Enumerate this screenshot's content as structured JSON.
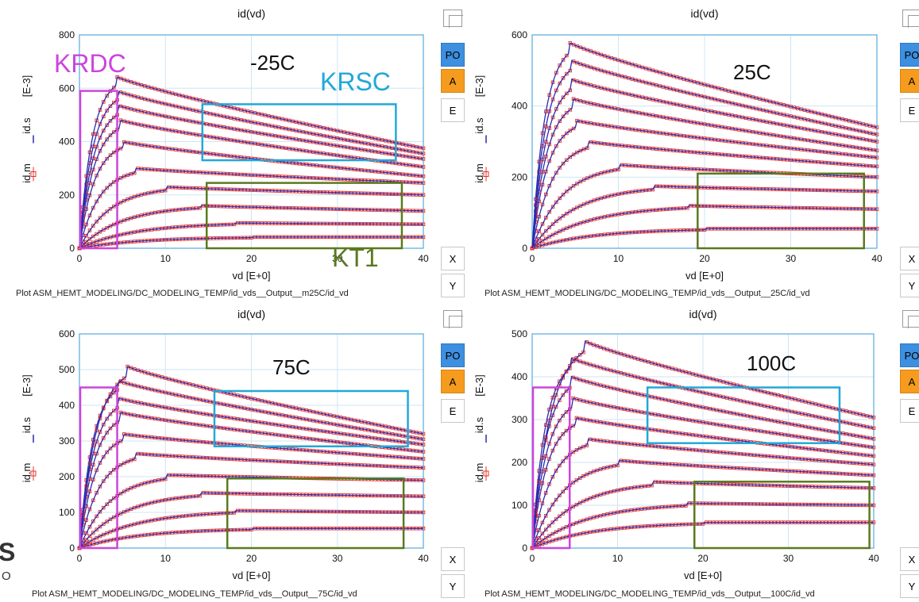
{
  "panels": [
    {
      "title": "id(vd)",
      "temp_label": "-25C",
      "xlabel": "vd  [E+0]",
      "ylabel_m": "id.m",
      "ylabel_s": "id.s",
      "ylabel_unit": "[E-3]",
      "caption": "Plot ASM_HEMT_MODELING/DC_MODELING_TEMP/id_vds__Output__m25C/id_vd",
      "region_labels": {
        "krdc": "KRDC",
        "krsc": "KRSC",
        "kt1": "KT1"
      }
    },
    {
      "title": "id(vd)",
      "temp_label": "25C",
      "xlabel": "vd  [E+0]",
      "ylabel_m": "id.m",
      "ylabel_s": "id.s",
      "ylabel_unit": "[E-3]",
      "caption": "Plot ASM_HEMT_MODELING/DC_MODELING_TEMP/id_vds__Output__25C/id_vd"
    },
    {
      "title": "id(vd)",
      "temp_label": "75C",
      "xlabel": "vd  [E+0]",
      "ylabel_m": "id.m",
      "ylabel_s": "id.s",
      "ylabel_unit": "[E-3]",
      "caption": "Plot ASM_HEMT_MODELING/DC_MODELING_TEMP/id_vds__Output__75C/id_vd"
    },
    {
      "title": "id(vd)",
      "temp_label": "100C",
      "xlabel": "vd  [E+0]",
      "ylabel_m": "id.m",
      "ylabel_s": "id.s",
      "ylabel_unit": "[E-3]",
      "caption": "Plot ASM_HEMT_MODELING/DC_MODELING_TEMP/id_vds__Output__100C/id_vd"
    }
  ],
  "side_buttons": {
    "po": "PO",
    "a": "A",
    "e": "E",
    "x": "X",
    "y": "Y"
  },
  "logo_fragments": {
    "top": "S",
    "bottom": "O"
  },
  "colors": {
    "measured": "#e8302a",
    "simulated": "#2b2bb0",
    "axis": "#55aadd",
    "grid": "#cde6f4",
    "krdc_box": "#cc44dd",
    "krsc_box": "#22a8d8",
    "kt1_box": "#5a7a1e"
  },
  "chart_data": [
    {
      "type": "line",
      "title": "id(vd)",
      "xlabel": "vd  [E+0]",
      "ylabel": "id.m id.s [E-3]",
      "xlim": [
        0,
        40
      ],
      "ylim": [
        0,
        800
      ],
      "xticks": [
        0,
        10,
        20,
        30,
        40
      ],
      "yticks": [
        0,
        200,
        400,
        600,
        800
      ],
      "grid": true,
      "series_peaks": [
        42,
        95,
        160,
        230,
        300,
        400,
        480,
        535,
        590,
        645
      ],
      "series_values_at_40": [
        42,
        90,
        140,
        200,
        245,
        270,
        305,
        335,
        355,
        375
      ],
      "series_peak_x": [
        20,
        18,
        14,
        10,
        6.5,
        5,
        4.8,
        4.6,
        4.4,
        4.2
      ]
    },
    {
      "type": "line",
      "title": "id(vd)",
      "xlabel": "vd  [E+0]",
      "ylabel": "id.m id.s [E-3]",
      "xlim": [
        0,
        40
      ],
      "ylim": [
        0,
        600
      ],
      "xticks": [
        0,
        10,
        20,
        30,
        40
      ],
      "yticks": [
        0,
        200,
        400,
        600
      ],
      "grid": true,
      "series_peaks": [
        55,
        120,
        175,
        235,
        300,
        360,
        420,
        475,
        530,
        580
      ],
      "series_values_at_40": [
        55,
        110,
        160,
        200,
        230,
        255,
        275,
        300,
        320,
        340
      ],
      "series_peak_x": [
        20,
        18,
        14,
        10,
        6.5,
        5,
        4.8,
        4.6,
        4.4,
        4.2
      ]
    },
    {
      "type": "line",
      "title": "id(vd)",
      "xlabel": "vd  [E+0]",
      "ylabel": "id.m id.s [E-3]",
      "xlim": [
        0,
        40
      ],
      "ylim": [
        0,
        600
      ],
      "xticks": [
        0,
        10,
        20,
        30,
        40
      ],
      "yticks": [
        0,
        100,
        200,
        300,
        400,
        500,
        600
      ],
      "grid": true,
      "series_peaks": [
        55,
        105,
        155,
        205,
        265,
        320,
        380,
        420,
        470,
        510
      ],
      "series_values_at_40": [
        55,
        100,
        145,
        190,
        225,
        250,
        270,
        290,
        305,
        320
      ],
      "series_peak_x": [
        20,
        18,
        14,
        10,
        6.5,
        5,
        4.8,
        4.6,
        4.4,
        5.5
      ]
    },
    {
      "type": "line",
      "title": "id(vd)",
      "xlabel": "vd  [E+0]",
      "ylabel": "id.m id.s [E-3]",
      "xlim": [
        0,
        40
      ],
      "ylim": [
        0,
        500
      ],
      "xticks": [
        0,
        10,
        20,
        30,
        40
      ],
      "yticks": [
        0,
        100,
        200,
        300,
        400,
        500
      ],
      "grid": true,
      "series_peaks": [
        60,
        105,
        155,
        205,
        255,
        305,
        350,
        400,
        445,
        485
      ],
      "series_values_at_40": [
        60,
        100,
        140,
        170,
        195,
        215,
        235,
        255,
        280,
        305
      ],
      "series_peak_x": [
        20,
        18,
        14,
        10,
        6.5,
        5,
        4.8,
        4.6,
        4.4,
        6
      ]
    }
  ]
}
